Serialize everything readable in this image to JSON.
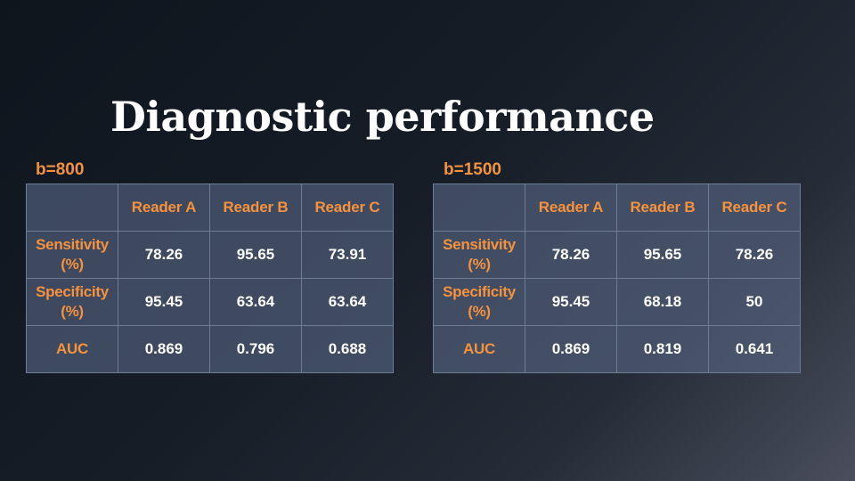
{
  "title": "Diagnostic performance",
  "tables": [
    {
      "label": "b=800",
      "columns": [
        "",
        "Reader A",
        "Reader B",
        "Reader C"
      ],
      "rows": [
        {
          "metric_line1": "Sensitivity",
          "metric_line2": "(%)",
          "values": [
            "78.26",
            "95.65",
            "73.91"
          ]
        },
        {
          "metric_line1": "Specificity",
          "metric_line2": "(%)",
          "values": [
            "95.45",
            "63.64",
            "63.64"
          ]
        },
        {
          "metric_line1": "AUC",
          "metric_line2": "",
          "values": [
            "0.869",
            "0.796",
            "0.688"
          ]
        }
      ]
    },
    {
      "label": "b=1500",
      "columns": [
        "",
        "Reader A",
        "Reader B",
        "Reader C"
      ],
      "rows": [
        {
          "metric_line1": "Sensitivity",
          "metric_line2": "(%)",
          "values": [
            "78.26",
            "95.65",
            "78.26"
          ]
        },
        {
          "metric_line1": "Specificity",
          "metric_line2": "(%)",
          "values": [
            "95.45",
            "68.18",
            "50"
          ]
        },
        {
          "metric_line1": "AUC",
          "metric_line2": "",
          "values": [
            "0.869",
            "0.819",
            "0.641"
          ]
        }
      ]
    }
  ],
  "colors": {
    "accent": "#f5923e",
    "text": "#ffffff",
    "cell_fill": "#586884",
    "cell_border": "#6e7d95"
  }
}
